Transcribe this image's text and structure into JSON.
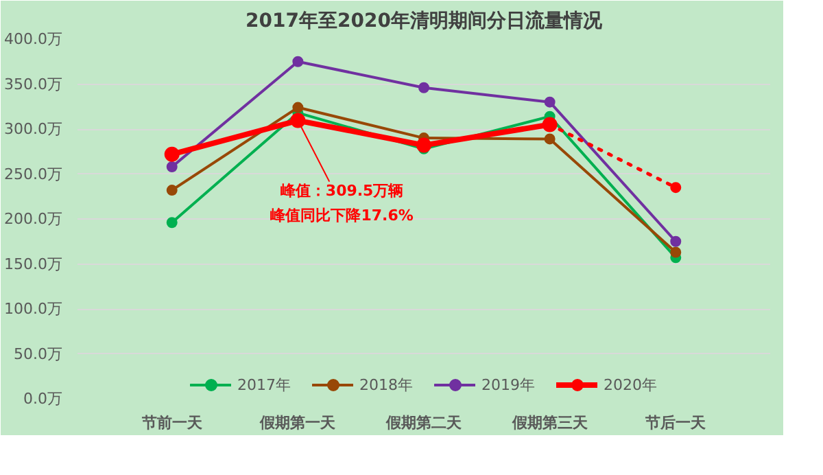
{
  "chart_data": {
    "type": "line",
    "title": "2017年至2020年清明期间分日流量情况",
    "categories": [
      "节前一天",
      "假期第一天",
      "假期第二天",
      "假期第三天",
      "节后一天"
    ],
    "series": [
      {
        "name": "2017年",
        "color": "#00b050",
        "values": [
          196,
          318,
          278,
          314,
          157
        ]
      },
      {
        "name": "2018年",
        "color": "#984807",
        "values": [
          232,
          324,
          290,
          289,
          163
        ]
      },
      {
        "name": "2019年",
        "color": "#7030a0",
        "values": [
          258,
          375,
          346,
          330,
          175
        ]
      },
      {
        "name": "2020年",
        "color": "#ff0000",
        "values": [
          272,
          309.5,
          282,
          305,
          null
        ]
      },
      {
        "color": "#ff0000",
        "values": [
          null,
          null,
          null,
          305,
          235
        ],
        "line_style": "dotted"
      }
    ],
    "ylim": [
      0,
      400
    ],
    "yticks": [
      {
        "value": 0,
        "label": "0.0万"
      },
      {
        "value": 50,
        "label": "50.0万"
      },
      {
        "value": 100,
        "label": "100.0万"
      },
      {
        "value": 150,
        "label": "150.0万"
      },
      {
        "value": 200,
        "label": "200.0万"
      },
      {
        "value": 250,
        "label": "250.0万"
      },
      {
        "value": 300,
        "label": "300.0万"
      },
      {
        "value": 350,
        "label": "350.0万"
      },
      {
        "value": 400,
        "label": "400.0万"
      }
    ],
    "grid": "y",
    "legend": "bottom",
    "marker": "circle",
    "line_style": "solid",
    "annotations": [
      {
        "text": "峰值：309.5万辆",
        "x": "假期第一天",
        "y": 309.5
      },
      "峰值同比下降17.6%"
    ]
  }
}
